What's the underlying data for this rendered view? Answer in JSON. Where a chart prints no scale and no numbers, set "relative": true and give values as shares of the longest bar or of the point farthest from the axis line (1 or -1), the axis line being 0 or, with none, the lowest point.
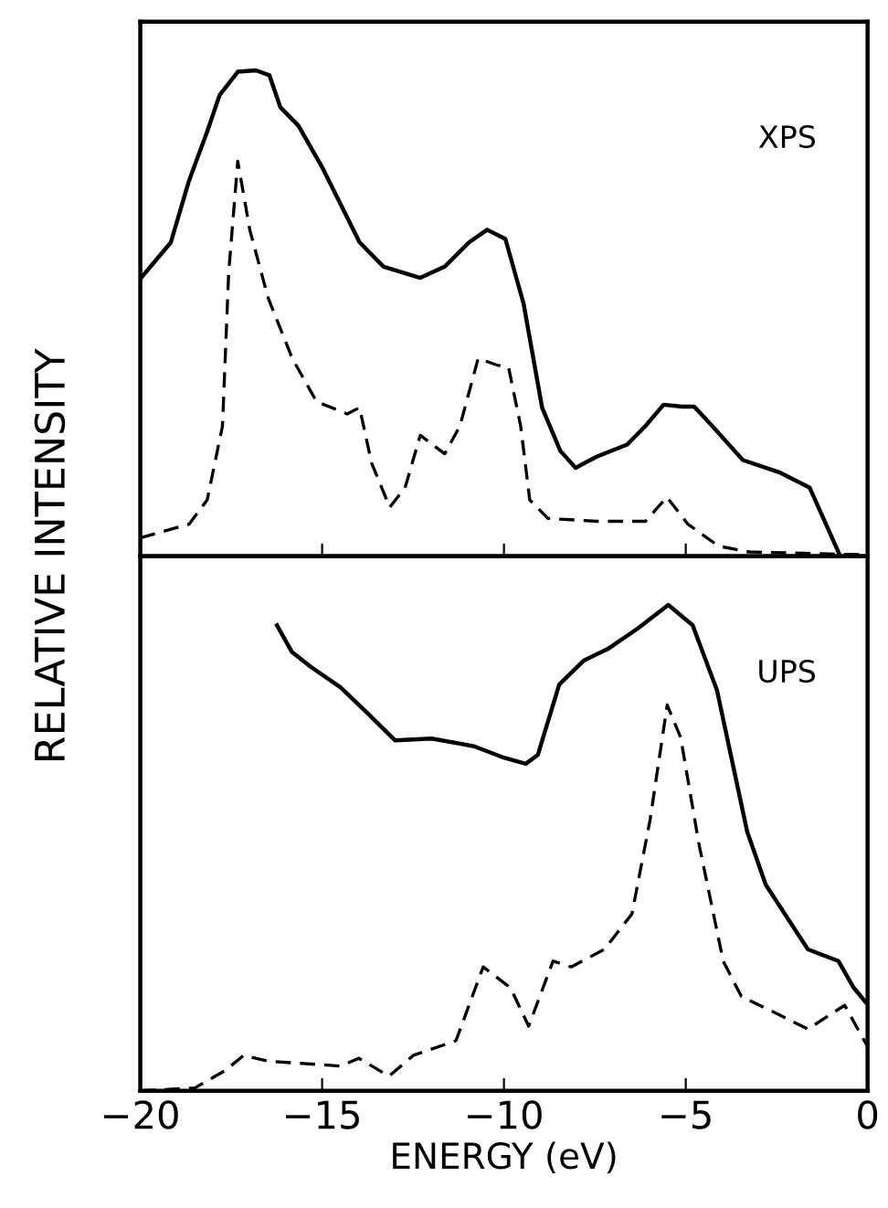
{
  "chart_data": [
    {
      "type": "line",
      "relative": true,
      "xlim": [
        -20,
        0
      ],
      "xticks": [
        -20,
        -15,
        -10,
        -5,
        0
      ],
      "tick_labels": false,
      "ylabel": "RELATIVE INTENSITY",
      "annotations": [
        "XPS"
      ],
      "series": [
        {
          "color": "#000000",
          "line_style": "solid",
          "x": [
            -20,
            -19.16,
            -18.66,
            -18.16,
            -17.82,
            -17.32,
            -16.82,
            -16.45,
            -16.15,
            -15.65,
            -14.98,
            -13.97,
            -13.31,
            -12.3,
            -11.63,
            -10.96,
            -10.46,
            -9.96,
            -9.46,
            -8.95,
            -8.45,
            -8.03,
            -7.45,
            -6.61,
            -6.11,
            -5.61,
            -5.1,
            -4.77,
            -4.27,
            -3.43,
            -2.43,
            -1.59,
            -0.75
          ],
          "values": [
            0.571,
            0.646,
            0.773,
            0.874,
            0.949,
            0.997,
            1.0,
            0.99,
            0.924,
            0.886,
            0.798,
            0.646,
            0.596,
            0.573,
            0.596,
            0.646,
            0.672,
            0.653,
            0.52,
            0.306,
            0.217,
            0.182,
            0.205,
            0.23,
            0.268,
            0.312,
            0.308,
            0.308,
            0.268,
            0.198,
            0.173,
            0.141,
            0.0
          ]
        },
        {
          "color": "#000000",
          "line_style": "dashed",
          "x": [
            -20,
            -18.66,
            -18.16,
            -17.74,
            -17.57,
            -17.32,
            -16.99,
            -16.49,
            -15.82,
            -15.15,
            -14.31,
            -13.97,
            -13.64,
            -13.14,
            -12.72,
            -12.3,
            -11.63,
            -11.21,
            -10.71,
            -10.21,
            -9.87,
            -9.54,
            -9.29,
            -8.79,
            -7.45,
            -6.11,
            -5.52,
            -4.94,
            -4.1,
            -3.26,
            0
          ],
          "values": [
            0.038,
            0.066,
            0.116,
            0.268,
            0.583,
            0.813,
            0.672,
            0.533,
            0.407,
            0.318,
            0.293,
            0.306,
            0.192,
            0.101,
            0.141,
            0.249,
            0.211,
            0.268,
            0.407,
            0.394,
            0.388,
            0.268,
            0.116,
            0.078,
            0.072,
            0.072,
            0.122,
            0.066,
            0.021,
            0.009,
            0.003
          ]
        }
      ]
    },
    {
      "type": "line",
      "relative": true,
      "xlim": [
        -20,
        0
      ],
      "xticks": [
        -20,
        -15,
        -10,
        -5,
        0
      ],
      "tick_labels": "x",
      "xlabel": "ENERGY (eV)",
      "annotations": [
        "UPS"
      ],
      "series": [
        {
          "color": "#000000",
          "line_style": "solid",
          "x": [
            -16.24,
            -15.83,
            -15.32,
            -14.49,
            -13.82,
            -12.99,
            -11.99,
            -10.82,
            -9.98,
            -9.4,
            -9.07,
            -8.48,
            -7.81,
            -7.15,
            -6.31,
            -5.48,
            -4.81,
            -4.14,
            -3.31,
            -2.8,
            -1.64,
            -0.8,
            -0.38,
            -0.05
          ],
          "values": [
            0.958,
            0.903,
            0.873,
            0.83,
            0.782,
            0.721,
            0.725,
            0.709,
            0.685,
            0.673,
            0.691,
            0.836,
            0.885,
            0.909,
            0.952,
            1.0,
            0.958,
            0.824,
            0.533,
            0.424,
            0.291,
            0.267,
            0.212,
            0.182
          ]
        },
        {
          "color": "#000000",
          "line_style": "dashed",
          "x": [
            -20,
            -18.5,
            -17.66,
            -17.16,
            -16.49,
            -14.49,
            -13.99,
            -13.16,
            -12.49,
            -11.32,
            -10.57,
            -9.82,
            -9.32,
            -8.65,
            -8.15,
            -7.24,
            -6.48,
            -5.98,
            -5.51,
            -5.14,
            -4.64,
            -3.97,
            -3.47,
            -2.47,
            -1.64,
            -0.63,
            0
          ],
          "values": [
            0,
            0.006,
            0.042,
            0.073,
            0.061,
            0.051,
            0.067,
            0.03,
            0.073,
            0.103,
            0.255,
            0.212,
            0.133,
            0.267,
            0.255,
            0.291,
            0.364,
            0.558,
            0.794,
            0.727,
            0.509,
            0.267,
            0.194,
            0.158,
            0.127,
            0.176,
            0.091
          ]
        }
      ]
    }
  ]
}
